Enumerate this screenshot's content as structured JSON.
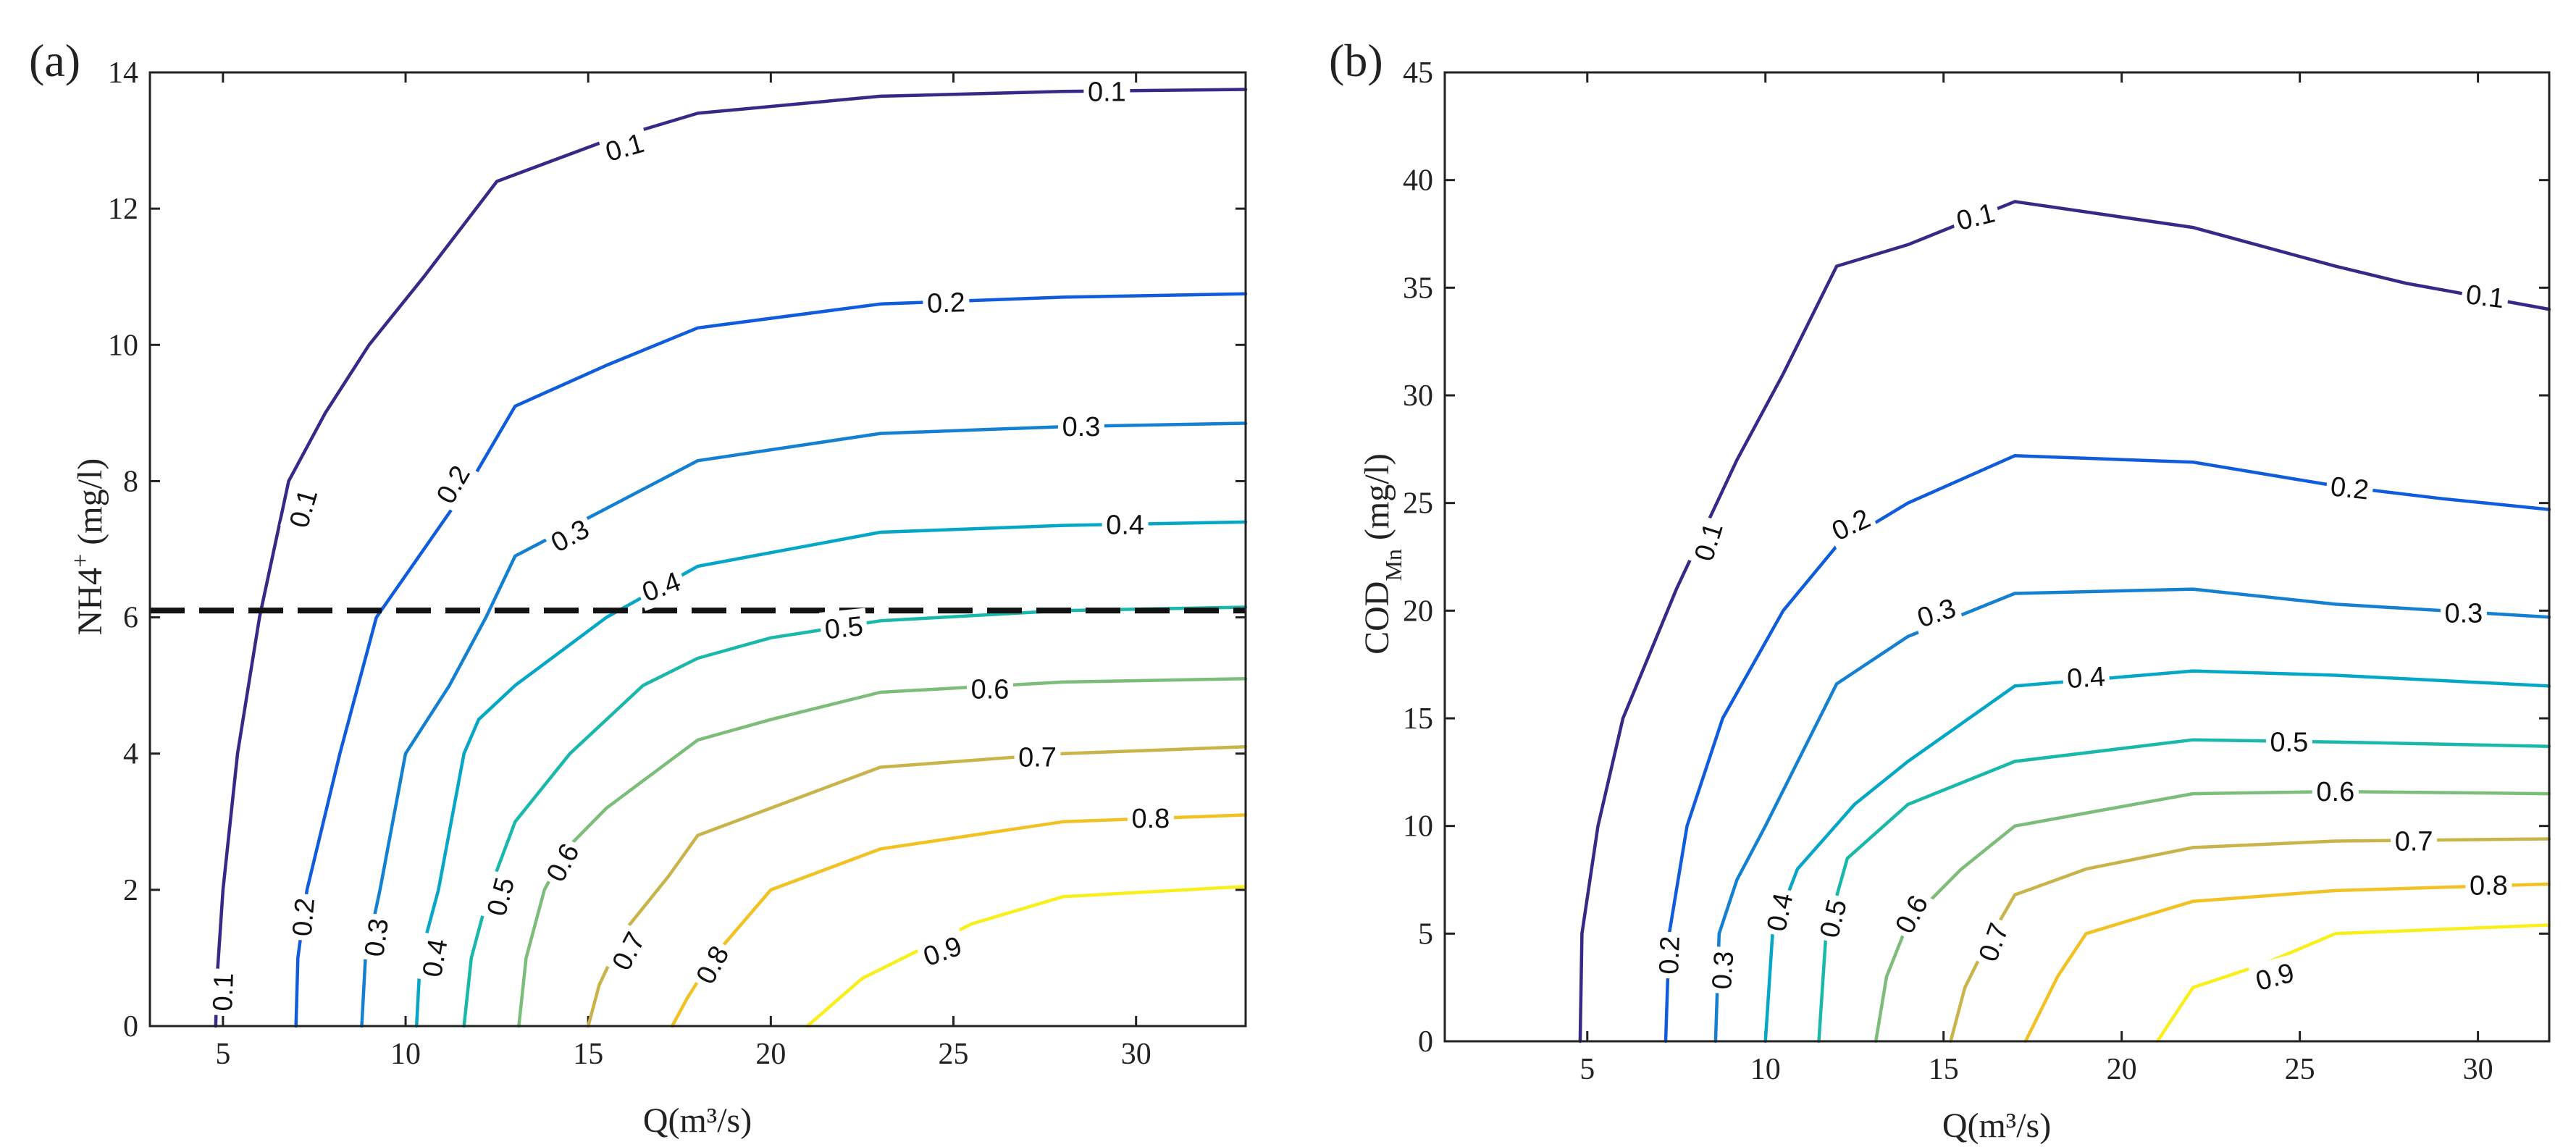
{
  "chart_data": [
    {
      "type": "line",
      "panel_label": "(a)",
      "xlabel": "Q(m³/s)",
      "ylabel_base": "NH4",
      "ylabel_sup": "+",
      "ylabel_unit": " (mg/l)",
      "xlim": [
        3,
        33
      ],
      "ylim": [
        0,
        14
      ],
      "xticks": [
        5,
        10,
        15,
        20,
        25,
        30
      ],
      "yticks": [
        0,
        2,
        4,
        6,
        8,
        10,
        12,
        14
      ],
      "threshold_y": 6.1,
      "series": [
        {
          "name": "0.1",
          "color": "#352a87",
          "x": [
            4.8,
            4.85,
            5.0,
            5.4,
            6.0,
            6.8,
            7.8,
            9.0,
            10.5,
            12.5,
            15.5,
            18.0,
            23.0,
            28.0,
            33.0
          ],
          "y": [
            0,
            0.8,
            2.0,
            4.0,
            6.0,
            8.0,
            9.0,
            10.0,
            11.0,
            12.4,
            13.0,
            13.4,
            13.65,
            13.72,
            13.75
          ],
          "labels": [
            {
              "text": "0.1",
              "x": 5.0,
              "y": 0.5,
              "rot": -88
            },
            {
              "text": "0.1",
              "x": 7.2,
              "y": 7.6,
              "rot": -74
            },
            {
              "text": "0.1",
              "x": 16.0,
              "y": 12.9,
              "rot": -16
            },
            {
              "text": "0.1",
              "x": 29.2,
              "y": 13.72,
              "rot": 0
            }
          ]
        },
        {
          "name": "0.2",
          "color": "#0f5cdd",
          "x": [
            7.0,
            7.05,
            7.3,
            8.2,
            9.2,
            10.5,
            11.8,
            13.0,
            15.5,
            18.0,
            23.0,
            28.0,
            33.0
          ],
          "y": [
            0,
            1.0,
            2.0,
            4.0,
            6.0,
            7.0,
            8.0,
            9.1,
            9.7,
            10.25,
            10.6,
            10.7,
            10.75
          ],
          "labels": [
            {
              "text": "0.2",
              "x": 7.2,
              "y": 1.6,
              "rot": -85
            },
            {
              "text": "0.2",
              "x": 11.3,
              "y": 7.95,
              "rot": -60
            },
            {
              "text": "0.2",
              "x": 24.8,
              "y": 10.62,
              "rot": -2
            }
          ]
        },
        {
          "name": "0.3",
          "color": "#1480d1",
          "x": [
            8.8,
            8.9,
            9.3,
            10.0,
            11.2,
            12.2,
            13.0,
            15.5,
            18.0,
            23.0,
            28.0,
            33.0
          ],
          "y": [
            0,
            1.0,
            2.0,
            4.0,
            5.0,
            6.0,
            6.9,
            7.6,
            8.3,
            8.7,
            8.8,
            8.85
          ],
          "labels": [
            {
              "text": "0.3",
              "x": 9.2,
              "y": 1.3,
              "rot": -82
            },
            {
              "text": "0.3",
              "x": 14.5,
              "y": 7.2,
              "rot": -28
            },
            {
              "text": "0.3",
              "x": 28.5,
              "y": 8.8,
              "rot": 0
            }
          ]
        },
        {
          "name": "0.4",
          "color": "#06a7c6",
          "x": [
            10.3,
            10.4,
            10.9,
            11.6,
            12.0,
            13.0,
            15.5,
            18.0,
            23.0,
            28.0,
            33.0
          ],
          "y": [
            0,
            1.0,
            2.0,
            4.0,
            4.5,
            5.0,
            6.0,
            6.75,
            7.25,
            7.35,
            7.4
          ],
          "labels": [
            {
              "text": "0.4",
              "x": 10.8,
              "y": 1.0,
              "rot": -80
            },
            {
              "text": "0.4",
              "x": 17.0,
              "y": 6.45,
              "rot": -20
            },
            {
              "text": "0.4",
              "x": 29.7,
              "y": 7.36,
              "rot": 0
            }
          ]
        },
        {
          "name": "0.5",
          "color": "#1ab8aa",
          "x": [
            11.6,
            11.8,
            12.3,
            13.0,
            14.5,
            16.5,
            18.0,
            20.0,
            23.0,
            28.0,
            33.0
          ],
          "y": [
            0,
            1.0,
            2.0,
            3.0,
            4.0,
            5.0,
            5.4,
            5.7,
            5.95,
            6.1,
            6.15
          ],
          "labels": [
            {
              "text": "0.5",
              "x": 12.6,
              "y": 1.9,
              "rot": -75
            },
            {
              "text": "0.5",
              "x": 22.0,
              "y": 5.85,
              "rot": -6
            }
          ]
        },
        {
          "name": "0.6",
          "color": "#7cbd7a",
          "x": [
            13.1,
            13.3,
            13.8,
            14.4,
            15.5,
            17.0,
            18.0,
            20.0,
            23.0,
            28.0,
            33.0
          ],
          "y": [
            0,
            1.0,
            2.0,
            2.6,
            3.2,
            3.8,
            4.2,
            4.5,
            4.9,
            5.05,
            5.1
          ],
          "labels": [
            {
              "text": "0.6",
              "x": 14.3,
              "y": 2.4,
              "rot": -62
            },
            {
              "text": "0.6",
              "x": 26.0,
              "y": 4.95,
              "rot": 0
            }
          ]
        },
        {
          "name": "0.7",
          "color": "#c8b44a",
          "x": [
            15.0,
            15.3,
            16.0,
            17.2,
            18.0,
            20.5,
            23.0,
            28.0,
            33.0
          ],
          "y": [
            0,
            0.6,
            1.4,
            2.2,
            2.8,
            3.3,
            3.8,
            4.0,
            4.1
          ],
          "labels": [
            {
              "text": "0.7",
              "x": 16.1,
              "y": 1.1,
              "rot": -62
            },
            {
              "text": "0.7",
              "x": 27.3,
              "y": 3.95,
              "rot": 0
            }
          ]
        },
        {
          "name": "0.8",
          "color": "#f2c123",
          "x": [
            17.3,
            17.7,
            18.4,
            20.0,
            23.0,
            28.0,
            33.0
          ],
          "y": [
            0,
            0.4,
            1.0,
            2.0,
            2.6,
            3.0,
            3.1
          ],
          "labels": [
            {
              "text": "0.8",
              "x": 18.4,
              "y": 0.9,
              "rot": -62
            },
            {
              "text": "0.8",
              "x": 30.4,
              "y": 3.05,
              "rot": 0
            }
          ]
        },
        {
          "name": "0.9",
          "color": "#f9f01b",
          "x": [
            21.0,
            22.5,
            24.0,
            25.5,
            28.0,
            33.0
          ],
          "y": [
            0,
            0.7,
            1.1,
            1.5,
            1.9,
            2.05
          ],
          "labels": [
            {
              "text": "0.9",
              "x": 24.7,
              "y": 1.1,
              "rot": -20
            }
          ]
        }
      ]
    },
    {
      "type": "line",
      "panel_label": "(b)",
      "xlabel": "Q(m³/s)",
      "ylabel_base": "COD",
      "ylabel_sub": "Mn",
      "ylabel_unit": " (mg/l)",
      "xlim": [
        1,
        32
      ],
      "ylim": [
        0,
        45
      ],
      "xticks": [
        5,
        10,
        15,
        20,
        25,
        30
      ],
      "yticks": [
        0,
        5,
        10,
        15,
        20,
        25,
        30,
        35,
        40,
        45
      ],
      "series": [
        {
          "name": "0.1",
          "color": "#352a87",
          "x": [
            4.8,
            4.85,
            5.3,
            6.0,
            7.5,
            9.2,
            10.5,
            12.0,
            14.0,
            17.0,
            22.0,
            26.0,
            28.0,
            32.0
          ],
          "y": [
            0,
            5.0,
            10.0,
            15.0,
            21.0,
            27.0,
            31.0,
            36.0,
            37.0,
            39.0,
            37.8,
            36.0,
            35.2,
            34.0
          ],
          "labels": [
            {
              "text": "0.1",
              "x": 8.4,
              "y": 23.2,
              "rot": -73
            },
            {
              "text": "0.1",
              "x": 15.9,
              "y": 38.3,
              "rot": -14
            },
            {
              "text": "0.1",
              "x": 30.2,
              "y": 34.6,
              "rot": 7
            }
          ]
        },
        {
          "name": "0.2",
          "color": "#0f5cdd",
          "x": [
            7.2,
            7.3,
            7.8,
            8.8,
            10.5,
            12.0,
            14.0,
            17.0,
            22.0,
            26.0,
            29.0,
            32.0
          ],
          "y": [
            0,
            5.0,
            10.0,
            15.0,
            20.0,
            23.0,
            25.0,
            27.2,
            26.9,
            25.8,
            25.2,
            24.7
          ],
          "labels": [
            {
              "text": "0.2",
              "x": 7.3,
              "y": 4.0,
              "rot": -88
            },
            {
              "text": "0.2",
              "x": 12.4,
              "y": 24.0,
              "rot": -25
            },
            {
              "text": "0.2",
              "x": 26.4,
              "y": 25.7,
              "rot": 6
            }
          ]
        },
        {
          "name": "0.3",
          "color": "#1480d1",
          "x": [
            8.6,
            8.7,
            9.2,
            10.0,
            12.0,
            14.0,
            17.0,
            22.0,
            26.0,
            29.0,
            32.0
          ],
          "y": [
            0,
            5.0,
            7.5,
            10.0,
            16.6,
            18.8,
            20.8,
            21.0,
            20.3,
            20.0,
            19.7
          ],
          "labels": [
            {
              "text": "0.3",
              "x": 8.8,
              "y": 3.3,
              "rot": -86
            },
            {
              "text": "0.3",
              "x": 14.8,
              "y": 19.9,
              "rot": -18
            },
            {
              "text": "0.3",
              "x": 29.6,
              "y": 19.9,
              "rot": 0
            }
          ]
        },
        {
          "name": "0.4",
          "color": "#06a7c6",
          "x": [
            10.0,
            10.2,
            10.9,
            12.5,
            14.0,
            17.0,
            22.0,
            26.0,
            32.0
          ],
          "y": [
            0,
            5.0,
            8.0,
            11.0,
            13.0,
            16.5,
            17.2,
            17.0,
            16.5
          ],
          "labels": [
            {
              "text": "0.4",
              "x": 10.4,
              "y": 6.0,
              "rot": -78
            },
            {
              "text": "0.4",
              "x": 19.0,
              "y": 16.9,
              "rot": -4
            }
          ]
        },
        {
          "name": "0.5",
          "color": "#1ab8aa",
          "x": [
            11.5,
            11.7,
            12.3,
            14.0,
            17.0,
            22.0,
            26.0,
            32.0
          ],
          "y": [
            0,
            5.0,
            8.5,
            11.0,
            13.0,
            14.0,
            13.9,
            13.7
          ],
          "labels": [
            {
              "text": "0.5",
              "x": 11.9,
              "y": 5.7,
              "rot": -76
            },
            {
              "text": "0.5",
              "x": 24.7,
              "y": 13.9,
              "rot": 0
            }
          ]
        },
        {
          "name": "0.6",
          "color": "#7cbd7a",
          "x": [
            13.1,
            13.4,
            14.0,
            15.5,
            17.0,
            22.0,
            26.0,
            32.0
          ],
          "y": [
            0,
            3.0,
            5.5,
            8.0,
            10.0,
            11.5,
            11.6,
            11.5
          ],
          "labels": [
            {
              "text": "0.6",
              "x": 14.1,
              "y": 5.9,
              "rot": -62
            },
            {
              "text": "0.6",
              "x": 26.0,
              "y": 11.6,
              "rot": 0
            }
          ]
        },
        {
          "name": "0.7",
          "color": "#c8b44a",
          "x": [
            15.2,
            15.6,
            16.2,
            17.0,
            19.0,
            22.0,
            26.0,
            32.0
          ],
          "y": [
            0,
            2.5,
            4.5,
            6.8,
            8.0,
            9.0,
            9.3,
            9.4
          ],
          "labels": [
            {
              "text": "0.7",
              "x": 16.4,
              "y": 4.6,
              "rot": -70
            },
            {
              "text": "0.7",
              "x": 28.2,
              "y": 9.3,
              "rot": 0
            }
          ]
        },
        {
          "name": "0.8",
          "color": "#f2c123",
          "x": [
            17.3,
            18.2,
            19.0,
            22.0,
            26.0,
            30.0,
            32.0
          ],
          "y": [
            0,
            3.0,
            5.0,
            6.5,
            7.0,
            7.2,
            7.3
          ],
          "labels": [
            {
              "text": "0.8",
              "x": 30.3,
              "y": 7.25,
              "rot": 0
            }
          ]
        },
        {
          "name": "0.9",
          "color": "#f9f01b",
          "x": [
            21.0,
            22.0,
            24.0,
            26.0,
            29.0,
            32.0
          ],
          "y": [
            0,
            2.5,
            3.6,
            5.0,
            5.2,
            5.4
          ],
          "labels": [
            {
              "text": "0.9",
              "x": 24.3,
              "y": 3.0,
              "rot": -15
            }
          ]
        }
      ]
    }
  ]
}
